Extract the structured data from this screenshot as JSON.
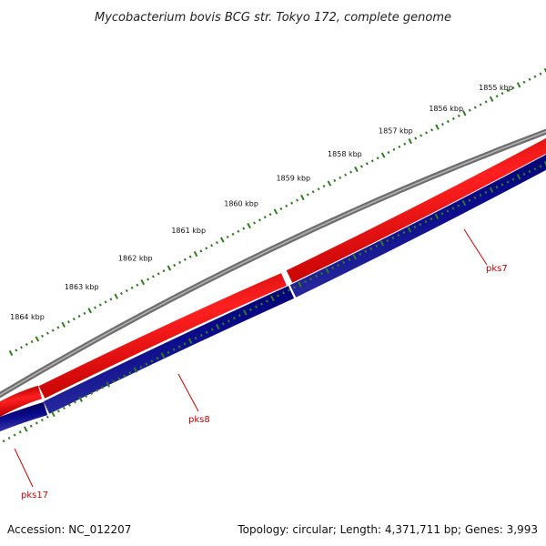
{
  "title": "Mycobacterium bovis BCG str. Tokyo 172, complete genome",
  "accession": "Accession: NC_012207",
  "summary": "Topology: circular; Length: 4,371,711 bp; Genes: 3,993",
  "kbp_labels": [
    "1855 kbp",
    "1856 kbp",
    "1857 kbp",
    "1858 kbp",
    "1859 kbp",
    "1860 kbp",
    "1861 kbp",
    "1862 kbp",
    "1863 kbp",
    "1864 kbp"
  ],
  "genes": [
    {
      "name": "pks7",
      "strand": "forward"
    },
    {
      "name": "pks8",
      "strand": "reverse"
    },
    {
      "name": "pks17",
      "strand": "reverse"
    }
  ],
  "colors": {
    "backbone": "#7f7f7f",
    "forward": "#ff0000",
    "reverse": "#000080",
    "tick": "#2e7d1e",
    "gene_label": "#cc0000"
  }
}
